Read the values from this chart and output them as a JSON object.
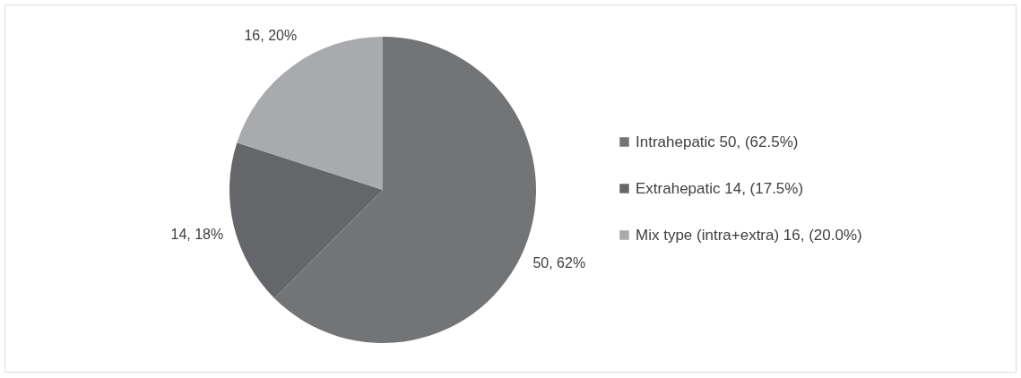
{
  "chart_data": {
    "type": "pie",
    "categories": [
      "Intrahepatic 50, (62.5%)",
      "Extrahepatic 14, (17.5%)",
      "Mix type (intra+extra) 16, (20.0%)"
    ],
    "values": [
      50,
      14,
      16
    ],
    "colors": [
      "#737476",
      "#65666a",
      "#a8aaad"
    ],
    "value_labels": [
      "50, 62%",
      "14, 18%",
      "16, 20%"
    ],
    "legend": "right"
  }
}
